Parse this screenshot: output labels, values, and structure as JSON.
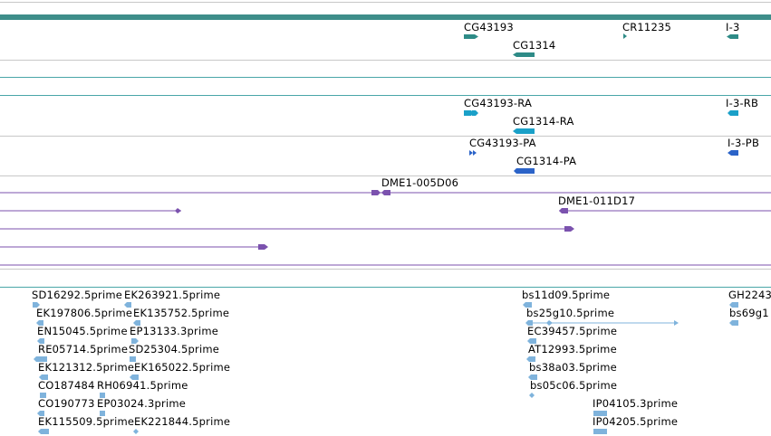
{
  "colors": {
    "gene": "#2e8b87",
    "transcript": "#1aa0c8",
    "protein": "#2b63c8",
    "clone": "#7b52ae",
    "est": "#7fb3dc",
    "separator_gray": "#c8c8c8",
    "separator_teal": "#4aa6a8"
  },
  "genes": [
    {
      "label": "CG43193"
    },
    {
      "label": "CR11235"
    },
    {
      "label": "I-3"
    },
    {
      "label": "CG1314"
    }
  ],
  "transcripts": [
    {
      "label": "CG43193-RA"
    },
    {
      "label": "I-3-RB"
    },
    {
      "label": "CG1314-RA"
    }
  ],
  "proteins": [
    {
      "label": "CG43193-PA"
    },
    {
      "label": "I-3-PB"
    },
    {
      "label": "CG1314-PA"
    }
  ],
  "clones": [
    {
      "label": "DME1-005D06"
    },
    {
      "label": "DME1-011D17"
    }
  ],
  "ests": [
    {
      "label": "SD16292.5prime"
    },
    {
      "label": "EK263921.5prime"
    },
    {
      "label": "EK197806.5prime"
    },
    {
      "label": "EK135752.5prime"
    },
    {
      "label": "EN15045.5prime"
    },
    {
      "label": "EP13133.3prime"
    },
    {
      "label": "RE05714.5prime"
    },
    {
      "label": "SD25304.5prime"
    },
    {
      "label": "EK121312.5prime"
    },
    {
      "label": "EK165022.5prime"
    },
    {
      "label": "CO187484"
    },
    {
      "label": "RH06941.5prime"
    },
    {
      "label": "CO190773"
    },
    {
      "label": "EP03024.3prime"
    },
    {
      "label": "EK115509.5prime"
    },
    {
      "label": "EK221844.5prime"
    },
    {
      "label": "bs11d09.5prime"
    },
    {
      "label": "bs25g10.5prime"
    },
    {
      "label": "EC39457.5prime"
    },
    {
      "label": "AT12993.5prime"
    },
    {
      "label": "bs38a03.5prime"
    },
    {
      "label": "bs05c06.5prime"
    },
    {
      "label": "IP04105.3prime"
    },
    {
      "label": "IP04205.5prime"
    },
    {
      "label": "GH2243"
    },
    {
      "label": "bs69g1"
    }
  ]
}
